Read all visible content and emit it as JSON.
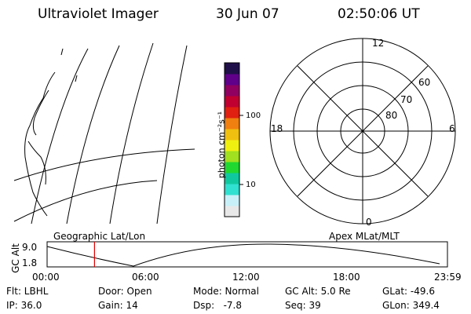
{
  "header": {
    "title": "Ultraviolet Imager",
    "date": "30 Jun 07",
    "time": "02:50:06 UT"
  },
  "colorbar": {
    "unit_label": "photon cm⁻²s⁻¹",
    "tick_100": "100",
    "tick_10": "10",
    "colors": [
      "#e8e8e8",
      "#c8f0f8",
      "#30e0d0",
      "#10c8a0",
      "#20d830",
      "#a0e020",
      "#f0f010",
      "#f0c010",
      "#f08010",
      "#e02010",
      "#c00030",
      "#900060",
      "#60008a",
      "#20104a"
    ]
  },
  "polar_plot": {
    "mlt_labels": {
      "top": "12",
      "left": "18",
      "right": "6",
      "bottom": "0"
    },
    "lat_labels": [
      "60",
      "70",
      "80"
    ]
  },
  "timeline": {
    "left_label": "Geographic Lat/Lon",
    "right_label": "Apex MLat/MLT",
    "axis_label": "GC Alt",
    "y_max": "9.0",
    "y_min": "1.8",
    "x_ticks": [
      "00:00",
      "06:00",
      "12:00",
      "18:00",
      "23:59"
    ],
    "current_time_marker_hours": 2.84,
    "marker_color": "#e00000"
  },
  "info": {
    "flt": "Flt: LBHL",
    "door": "Door: Open",
    "mode": "Mode: Normal",
    "gcalt": "GC Alt: 5.0 Re",
    "glat": "GLat: -49.6",
    "ip": "IP: 36.0",
    "gain": "Gain: 14",
    "dsp": "Dsp:   -7.8",
    "seq": "Seq: 39",
    "glon": "GLon: 349.4"
  }
}
